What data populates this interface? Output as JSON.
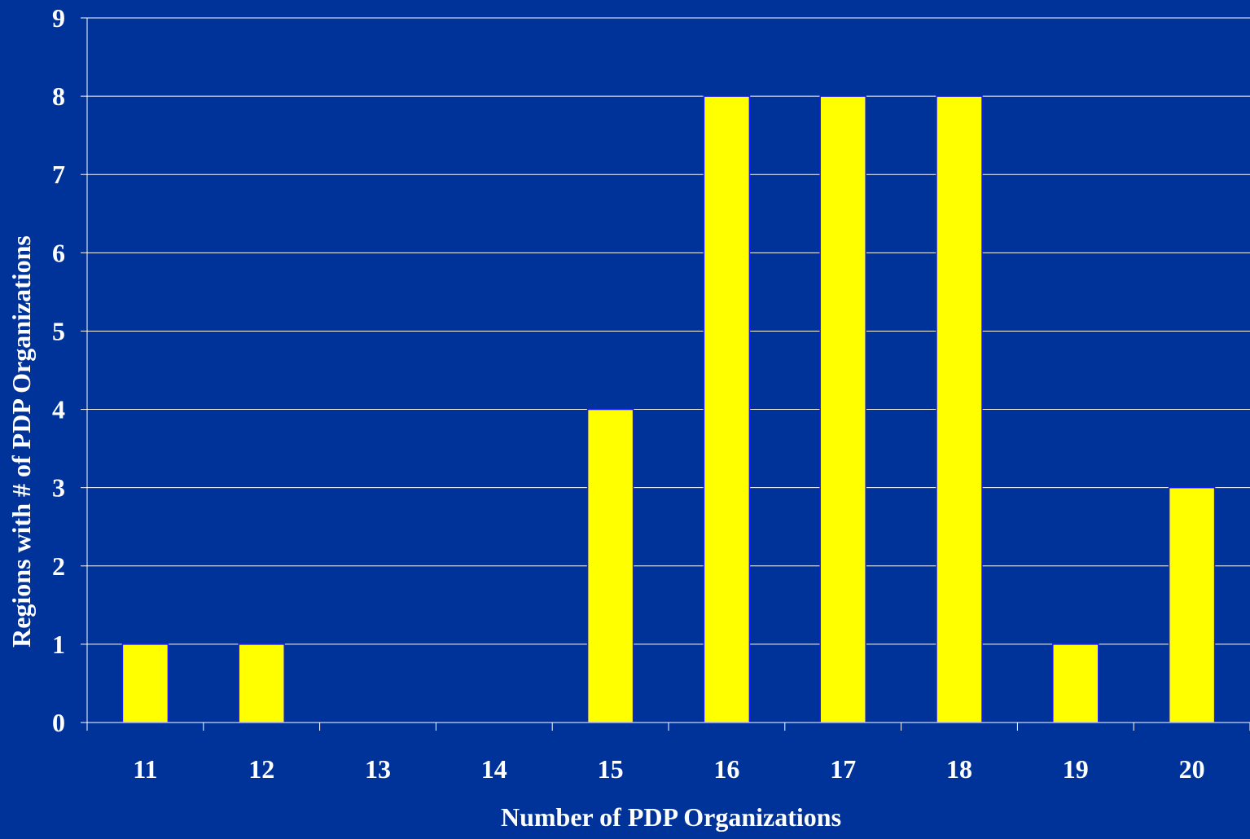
{
  "colors": {
    "background": "#003399",
    "bar_fill": "#FFFF00",
    "bar_stroke": "#1a1aff",
    "grid": "#ffffff",
    "text": "#ffffff"
  },
  "chart_data": {
    "type": "bar",
    "title": "",
    "xlabel": "Number of PDP Organizations",
    "ylabel": "Regions with # of PDP Organizations",
    "categories": [
      "11",
      "12",
      "13",
      "14",
      "15",
      "16",
      "17",
      "18",
      "19",
      "20"
    ],
    "values": [
      1,
      1,
      0,
      0,
      4,
      8,
      8,
      8,
      1,
      3
    ],
    "ylim": [
      0,
      9
    ],
    "yticks": [
      "0",
      "1",
      "2",
      "3",
      "4",
      "5",
      "6",
      "7",
      "8",
      "9"
    ],
    "grid": true,
    "legend": "none"
  }
}
